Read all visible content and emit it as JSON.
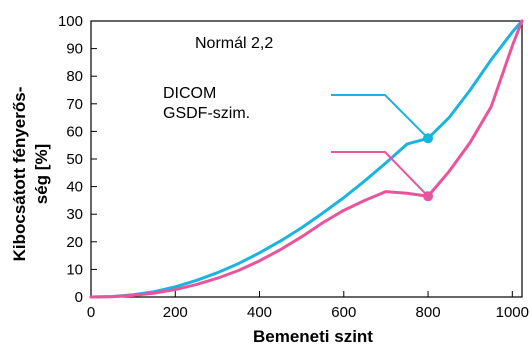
{
  "chart_data": {
    "type": "line",
    "xlabel": "Bemeneti szint",
    "ylabel_line1": "Kibocsátott fényerős-",
    "ylabel_line2": "ség [%]",
    "xlim": [
      0,
      1023
    ],
    "ylim": [
      0,
      100
    ],
    "xticks": [
      0,
      200,
      400,
      600,
      800,
      1000
    ],
    "yticks": [
      0,
      10,
      20,
      30,
      40,
      50,
      60,
      70,
      80,
      90,
      100
    ],
    "grid": false,
    "annotations": {
      "title_text": "Normál 2,2",
      "dicom_line1": "DICOM",
      "dicom_line2": "GSDF-szim."
    },
    "series": [
      {
        "color": "#1bb3e0",
        "label": "DICOM GSDF-szim.",
        "x": [
          0,
          50,
          100,
          150,
          200,
          250,
          300,
          350,
          400,
          450,
          500,
          550,
          600,
          650,
          700,
          750,
          800,
          850,
          900,
          950,
          1000,
          1023
        ],
        "y": [
          0,
          0.2,
          0.8,
          1.9,
          3.7,
          6.0,
          8.8,
          12.1,
          16.0,
          20.3,
          25.1,
          30.4,
          36.0,
          42.1,
          48.6,
          55.4,
          57.5,
          65.0,
          75.0,
          86.0,
          96.0,
          100
        ]
      },
      {
        "color": "#e8559c",
        "label": "Normál 2,2",
        "x": [
          0,
          50,
          100,
          150,
          200,
          250,
          300,
          350,
          400,
          450,
          500,
          550,
          600,
          650,
          700,
          750,
          800,
          850,
          900,
          950,
          1000,
          1023
        ],
        "y": [
          0,
          0.1,
          0.6,
          1.4,
          2.7,
          4.5,
          6.8,
          9.6,
          13.1,
          17.2,
          21.8,
          26.9,
          31.4,
          35.0,
          38.2,
          37.6,
          36.5,
          45.5,
          56.0,
          69.0,
          91.0,
          100
        ]
      }
    ],
    "markers": [
      {
        "series": 0,
        "x": 800,
        "y": 57.5
      },
      {
        "series": 1,
        "x": 800,
        "y": 36.5
      }
    ]
  }
}
